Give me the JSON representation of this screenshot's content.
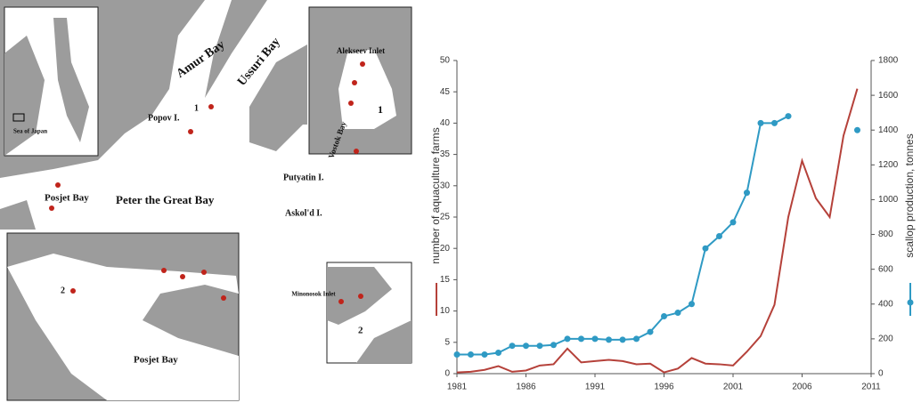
{
  "map": {
    "labels": [
      "Amur Bay",
      "Ussuri Bay",
      "1",
      "Popov I.",
      "Sea of Japan",
      "Alekseev Inlet",
      "1",
      "Posjet Bay",
      "Peter the Great Bay",
      "Putyatin I.",
      "Vostok Bay",
      "Askol'd I.",
      "2",
      "Posjet Bay",
      "Minonosok Inlet",
      "2"
    ]
  },
  "chart_data": {
    "type": "line",
    "x": [
      1981,
      1982,
      1983,
      1984,
      1985,
      1986,
      1987,
      1988,
      1989,
      1990,
      1991,
      1992,
      1993,
      1994,
      1995,
      1996,
      1997,
      1998,
      1999,
      2000,
      2001,
      2002,
      2003,
      2004,
      2005,
      2006,
      2007,
      2008,
      2009,
      2010
    ],
    "series": [
      {
        "name": "number of aquaculture farms",
        "color": "#b5413a",
        "values": [
          0.2,
          0.3,
          0.6,
          1.2,
          0.3,
          0.5,
          1.3,
          1.5,
          4,
          1.8,
          2,
          2.2,
          2,
          1.5,
          1.6,
          0.2,
          0.8,
          2.5,
          1.6,
          1.5,
          1.3,
          3.5,
          6,
          11,
          25,
          34,
          28,
          25,
          38,
          45.5
        ]
      },
      {
        "name": "scallop production, tonnes",
        "color": "#2f9ac4",
        "axis": "y2",
        "values": [
          110,
          110,
          110,
          120,
          160,
          160,
          160,
          165,
          200,
          200,
          200,
          195,
          195,
          200,
          240,
          330,
          350,
          400,
          720,
          790,
          870,
          1040,
          1440,
          1440,
          1480,
          null,
          null,
          null,
          null,
          1400
        ]
      }
    ],
    "xlim": [
      1981,
      2011
    ],
    "xticks": [
      1981,
      1986,
      1991,
      1996,
      2001,
      2006,
      2011
    ],
    "ylim": [
      0,
      50
    ],
    "yticks": [
      0,
      5,
      10,
      15,
      20,
      25,
      30,
      35,
      40,
      45,
      50
    ],
    "y2lim": [
      0,
      1800
    ],
    "y2ticks": [
      0,
      200,
      400,
      600,
      800,
      1000,
      1200,
      1400,
      1600,
      1800
    ]
  }
}
